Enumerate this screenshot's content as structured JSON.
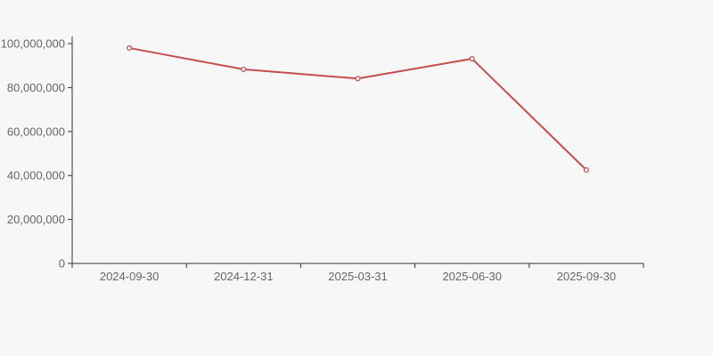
{
  "chart_data": {
    "type": "line",
    "categories": [
      "2024-09-30",
      "2024-12-31",
      "2025-03-31",
      "2025-06-30",
      "2025-09-30"
    ],
    "values": [
      98000000,
      88300000,
      84100000,
      93100000,
      42500000
    ],
    "title": "",
    "xlabel": "",
    "ylabel": "",
    "ylim": [
      0,
      100000000
    ],
    "y_tick_step": 20000000,
    "y_tick_labels": [
      "0",
      "20,000,000",
      "40,000,000",
      "60,000,000",
      "80,000,000",
      "100,000,000"
    ],
    "grid": false,
    "legend": "none",
    "marker": "hollow-circle",
    "colors": {
      "background": "#f7f7f7",
      "line": "#c64d4d",
      "marker_fill": "#ffffff",
      "axis_line": "#333333",
      "tick_label": "#666666"
    }
  }
}
